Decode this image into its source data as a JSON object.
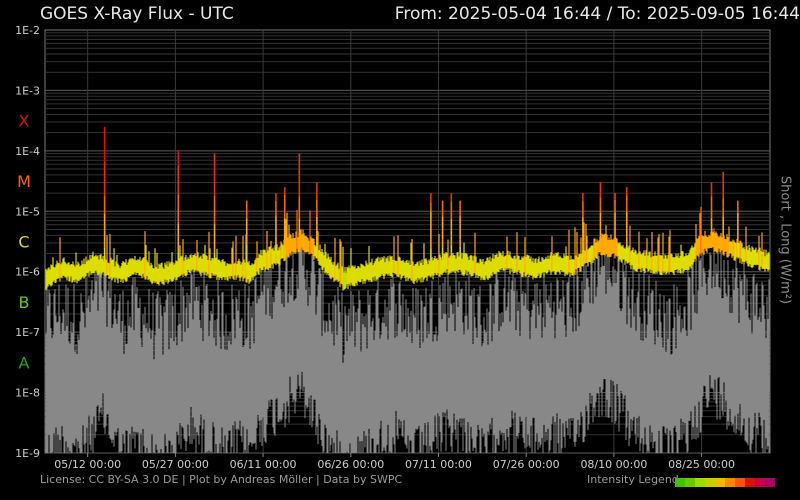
{
  "header": {
    "title": "GOES X-Ray Flux - UTC",
    "range": "From: 2025-05-04 16:44  /  To: 2025-09-05 16:44"
  },
  "footer": {
    "license": "License: CC BY-SA 3.0 DE | Plot by Andreas Möller | Data by SWPC",
    "legend_label": "Intensity Legend",
    "legend_colors": [
      "#44c000",
      "#66cc00",
      "#99dd00",
      "#cccc00",
      "#eebb00",
      "#ff8800",
      "#ff5500",
      "#dd1100",
      "#cc0044",
      "#aa0066"
    ]
  },
  "chart_data": {
    "type": "line",
    "title": "GOES X-Ray Flux - UTC",
    "ylabel": "Short , Long (W/m²)",
    "yscale": "log",
    "ylim": [
      1e-09,
      0.01
    ],
    "y_tick_labels": [
      "1E-2",
      "1E-3",
      "1E-4",
      "1E-5",
      "1E-6",
      "1E-7",
      "1E-8",
      "1E-9"
    ],
    "flare_classes": [
      {
        "label": "X",
        "color": "#dd1111"
      },
      {
        "label": "M",
        "color": "#ff6600"
      },
      {
        "label": "C",
        "color": "#dddd00"
      },
      {
        "label": "B",
        "color": "#66cc00"
      },
      {
        "label": "A",
        "color": "#22aa00"
      }
    ],
    "x_range_days": [
      0,
      124
    ],
    "x_tick_labels": [
      "05/12 00:00",
      "05/27 00:00",
      "06/11 00:00",
      "06/26 00:00",
      "07/11 00:00",
      "07/26 00:00",
      "08/10 00:00",
      "08/25 00:00"
    ],
    "x_tick_days": [
      7.3,
      22.3,
      37.3,
      52.3,
      67.3,
      82.3,
      97.3,
      112.3
    ],
    "grid": true,
    "series": [
      {
        "name": "Long",
        "color_scale": "intensity",
        "x_days": [
          0,
          3,
          6,
          8,
          10,
          13,
          16,
          19,
          22,
          25,
          28,
          31,
          33,
          35,
          37,
          40,
          42,
          44,
          46,
          48,
          51,
          54,
          57,
          60,
          63,
          66,
          69,
          72,
          75,
          78,
          81,
          84,
          87,
          90,
          93,
          95,
          97,
          99,
          101,
          104,
          107,
          110,
          112,
          114,
          116,
          118,
          120,
          124
        ],
        "y": [
          8e-07,
          1.2e-06,
          1e-06,
          1.5e-06,
          1.3e-06,
          1e-06,
          1.4e-06,
          9e-07,
          1.1e-06,
          1.5e-06,
          1.3e-06,
          1.1e-06,
          1.2e-06,
          1e-06,
          1.6e-06,
          2e-06,
          3e-06,
          3.5e-06,
          2.5e-06,
          1.5e-06,
          8e-07,
          1e-06,
          1.2e-06,
          1.3e-06,
          1e-06,
          1.2e-06,
          1.5e-06,
          1.4e-06,
          1.1e-06,
          1.6e-06,
          1.4e-06,
          1.2e-06,
          1.5e-06,
          1.3e-06,
          2e-06,
          3e-06,
          2.8e-06,
          2.2e-06,
          1.6e-06,
          1.5e-06,
          1.4e-06,
          1.6e-06,
          3e-06,
          3.5e-06,
          3e-06,
          2.5e-06,
          2e-06,
          1.5e-06
        ]
      },
      {
        "name": "Short",
        "color": "#888888",
        "x_days": [
          0,
          3,
          6,
          8,
          10,
          13,
          16,
          19,
          22,
          25,
          28,
          31,
          33,
          35,
          37,
          40,
          42,
          44,
          46,
          48,
          51,
          54,
          57,
          60,
          63,
          66,
          69,
          72,
          75,
          78,
          81,
          84,
          87,
          90,
          93,
          95,
          97,
          99,
          101,
          104,
          107,
          110,
          112,
          114,
          116,
          118,
          120,
          124
        ],
        "y": [
          2e-08,
          3e-08,
          2e-08,
          4e-08,
          8e-08,
          2e-08,
          3e-08,
          1.5e-08,
          2e-08,
          5e-08,
          3e-08,
          2e-08,
          3e-08,
          2e-08,
          6e-08,
          1e-07,
          1.5e-07,
          2e-07,
          8e-08,
          3e-08,
          1.5e-08,
          2e-08,
          3e-08,
          4e-08,
          2e-08,
          3e-08,
          5e-08,
          4e-08,
          2e-08,
          5e-08,
          4e-08,
          3e-08,
          4e-08,
          3e-08,
          1e-07,
          2e-07,
          1.5e-07,
          8e-08,
          4e-08,
          3e-08,
          2e-08,
          4e-08,
          1e-07,
          2e-07,
          1.5e-07,
          8e-08,
          5e-08,
          3e-08
        ]
      }
    ],
    "peaks": [
      {
        "x_days": 10.2,
        "y": 0.00025
      },
      {
        "x_days": 22.8,
        "y": 0.0001
      },
      {
        "x_days": 29.0,
        "y": 9e-05
      },
      {
        "x_days": 34.5,
        "y": 1.5e-05
      },
      {
        "x_days": 39.5,
        "y": 2e-05
      },
      {
        "x_days": 41.0,
        "y": 2.5e-05
      },
      {
        "x_days": 43.5,
        "y": 9e-05
      },
      {
        "x_days": 46.5,
        "y": 3e-05
      },
      {
        "x_days": 66.0,
        "y": 2e-05
      },
      {
        "x_days": 68.0,
        "y": 1.5e-05
      },
      {
        "x_days": 69.5,
        "y": 2e-05
      },
      {
        "x_days": 71.0,
        "y": 1.5e-05
      },
      {
        "x_days": 92.0,
        "y": 2e-05
      },
      {
        "x_days": 95.0,
        "y": 3e-05
      },
      {
        "x_days": 97.5,
        "y": 2e-05
      },
      {
        "x_days": 99.5,
        "y": 2.5e-05
      },
      {
        "x_days": 114.0,
        "y": 3e-05
      },
      {
        "x_days": 116.0,
        "y": 4.5e-05
      },
      {
        "x_days": 118.5,
        "y": 1.5e-05
      }
    ]
  }
}
